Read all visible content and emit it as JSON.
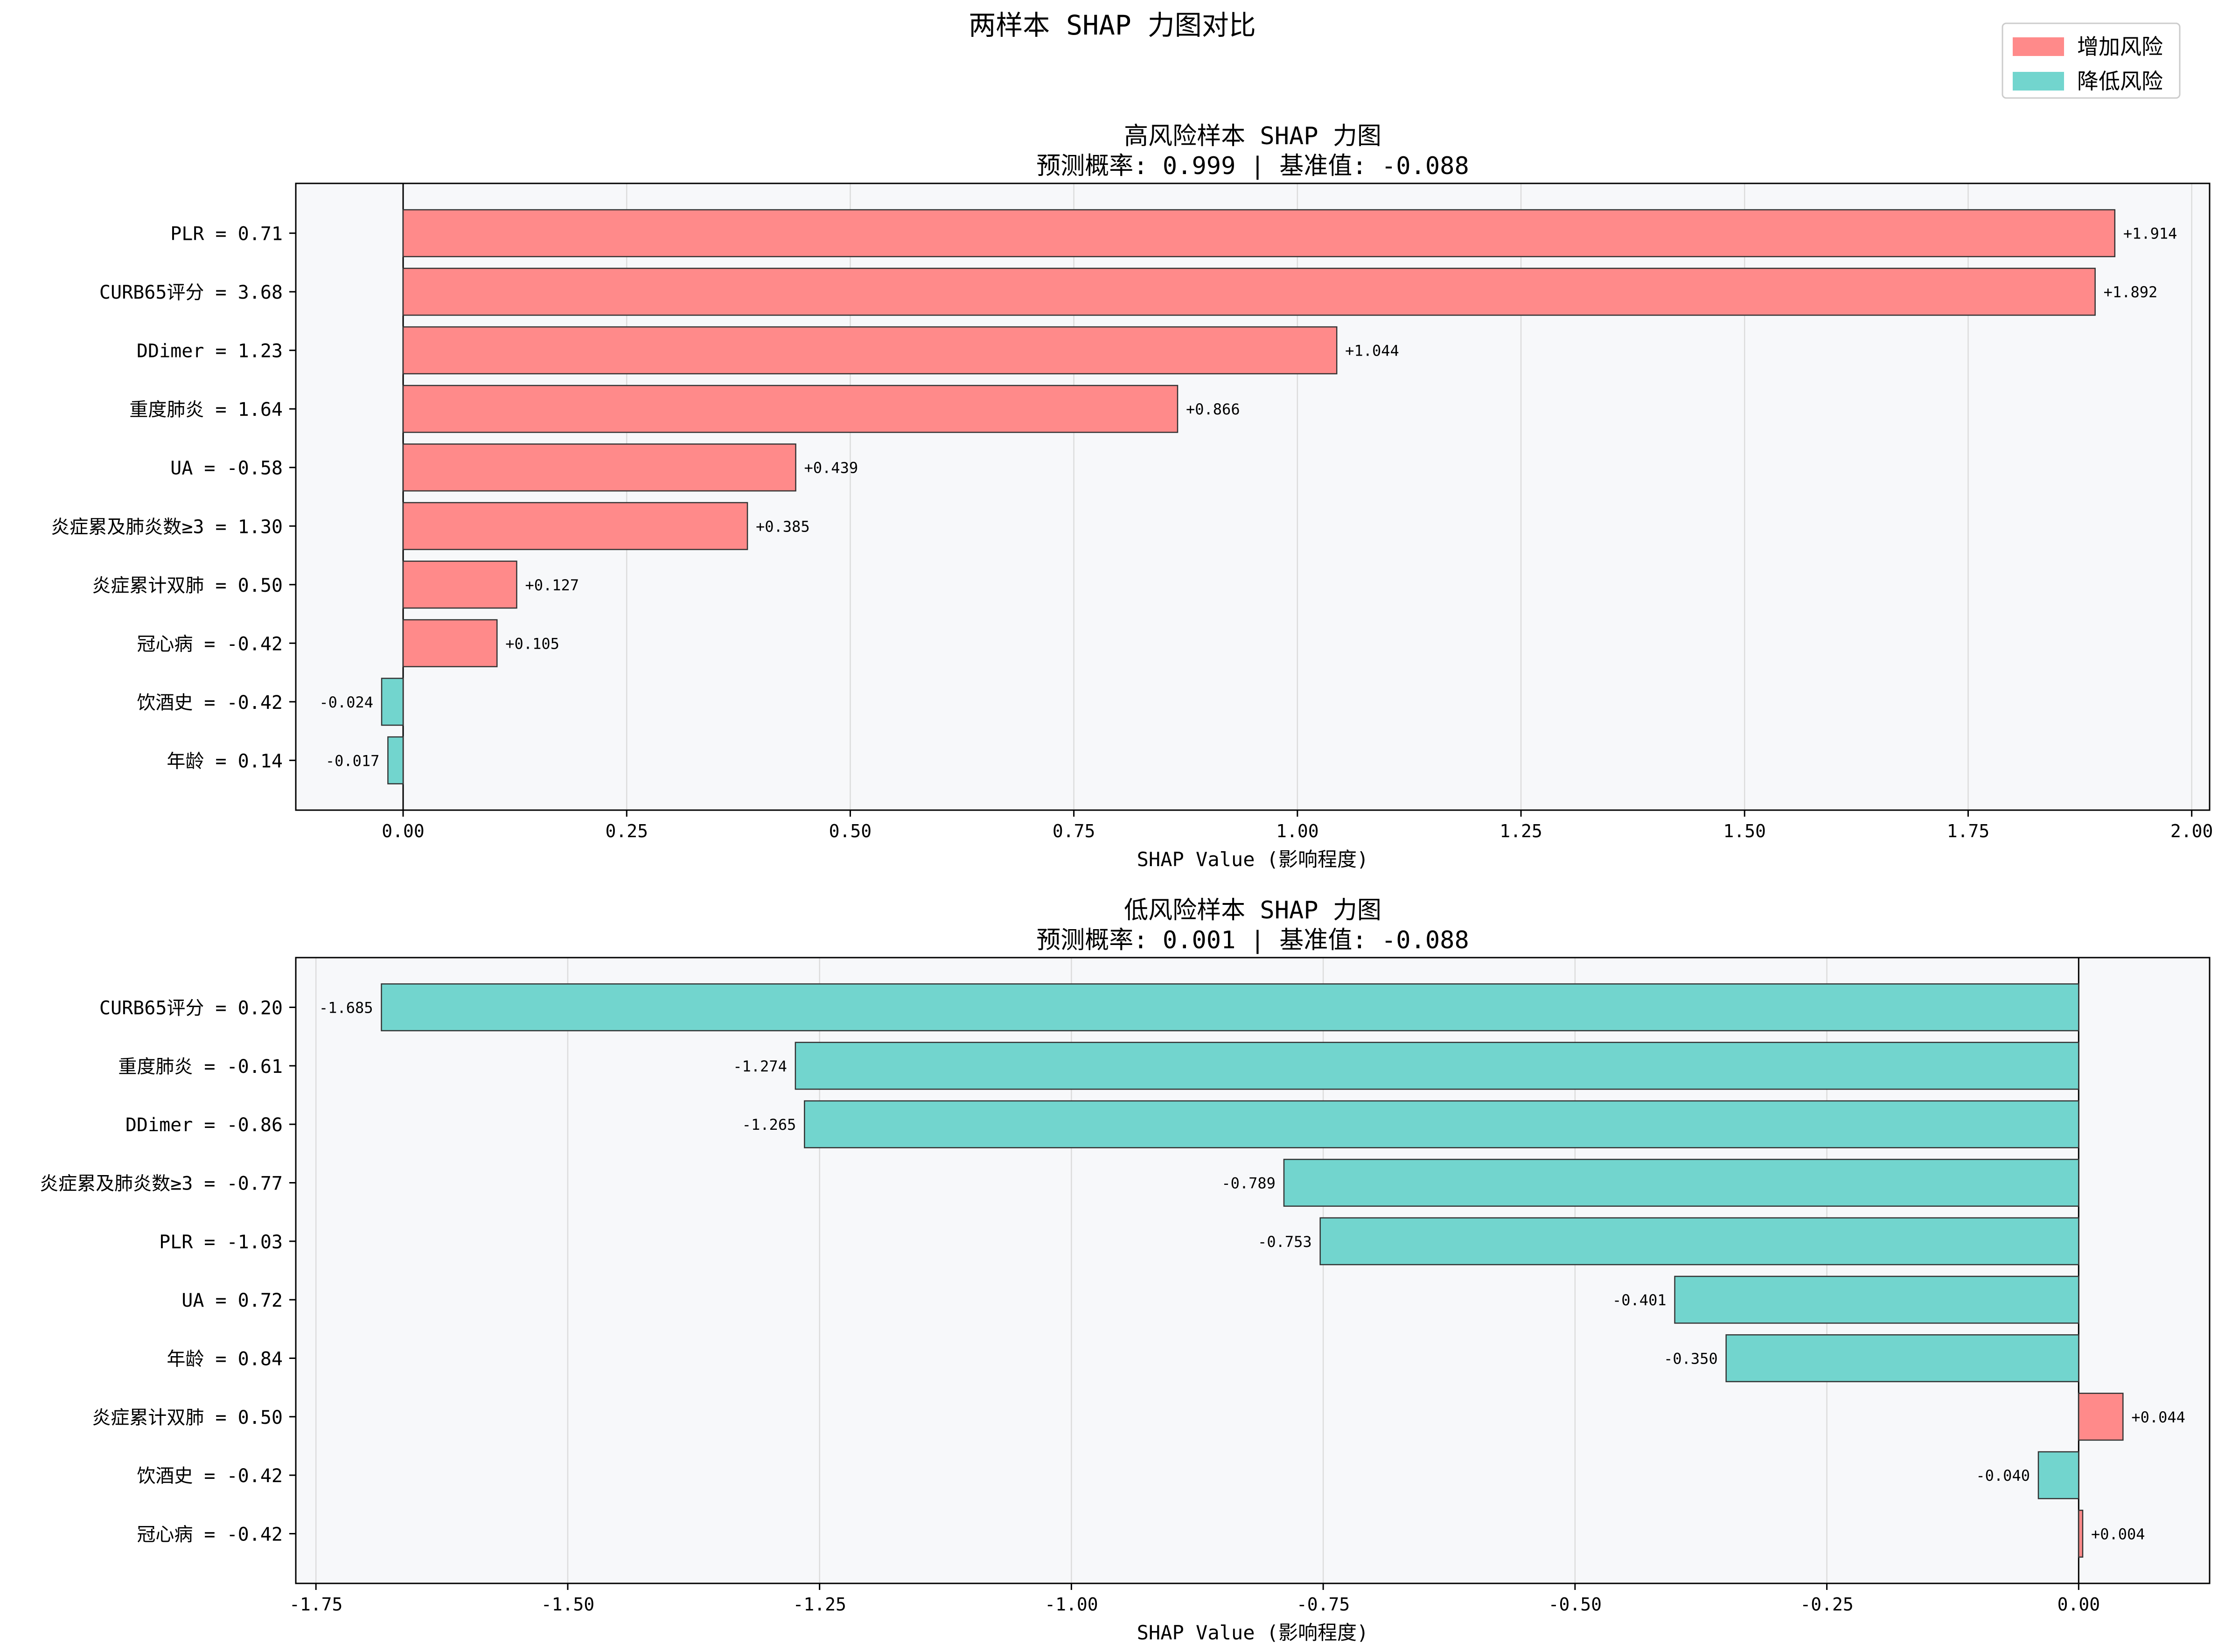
{
  "figure": {
    "title": "两样本 SHAP 力图对比",
    "legend": {
      "position": "top-right",
      "items": [
        {
          "label": "增加风险",
          "color": "#FF8A8A"
        },
        {
          "label": "降低风险",
          "color": "#72D5CE"
        }
      ]
    },
    "colors": {
      "positive": "#FF8A8A",
      "negative": "#72D5CE",
      "plot_bg": "#F7F8FA"
    }
  },
  "chart_data": [
    {
      "type": "bar",
      "orientation": "horizontal",
      "title": "高风险样本 SHAP 力图",
      "subtitle": "预测概率: 0.999 | 基准值: -0.088",
      "xlabel": "SHAP Value (影响程度)",
      "xlim": [
        -0.12,
        2.02
      ],
      "xticks": [
        0.0,
        0.25,
        0.5,
        0.75,
        1.0,
        1.25,
        1.5,
        1.75,
        2.0
      ],
      "xtick_labels": [
        "0.00",
        "0.25",
        "0.50",
        "0.75",
        "1.00",
        "1.25",
        "1.50",
        "1.75",
        "2.00"
      ],
      "grid": "vertical",
      "categories": [
        "PLR = 0.71",
        "CURB65评分 = 3.68",
        "DDimer = 1.23",
        "重度肺炎 = 1.64",
        "UA = -0.58",
        "炎症累及肺炎数≥3 = 1.30",
        "炎症累计双肺 = 0.50",
        "冠心病 = -0.42",
        "饮酒史 = -0.42",
        "年龄 = 0.14"
      ],
      "values": [
        1.914,
        1.892,
        1.044,
        0.866,
        0.439,
        0.385,
        0.127,
        0.105,
        -0.024,
        -0.017
      ],
      "value_labels": [
        "+1.914",
        "+1.892",
        "+1.044",
        "+0.866",
        "+0.439",
        "+0.385",
        "+0.127",
        "+0.105",
        "-0.024",
        "-0.017"
      ]
    },
    {
      "type": "bar",
      "orientation": "horizontal",
      "title": "低风险样本 SHAP 力图",
      "subtitle": "预测概率: 0.001 | 基准值: -0.088",
      "xlabel": "SHAP Value (影响程度)",
      "xlim": [
        -1.77,
        0.13
      ],
      "xticks": [
        -1.75,
        -1.5,
        -1.25,
        -1.0,
        -0.75,
        -0.5,
        -0.25,
        0.0
      ],
      "xtick_labels": [
        "-1.75",
        "-1.50",
        "-1.25",
        "-1.00",
        "-0.75",
        "-0.50",
        "-0.25",
        "0.00"
      ],
      "grid": "vertical",
      "categories": [
        "CURB65评分 = 0.20",
        "重度肺炎 = -0.61",
        "DDimer = -0.86",
        "炎症累及肺炎数≥3 = -0.77",
        "PLR = -1.03",
        "UA = 0.72",
        "年龄 = 0.84",
        "炎症累计双肺 = 0.50",
        "饮酒史 = -0.42",
        "冠心病 = -0.42"
      ],
      "values": [
        -1.685,
        -1.274,
        -1.265,
        -0.789,
        -0.753,
        -0.401,
        -0.35,
        0.044,
        -0.04,
        0.004
      ],
      "value_labels": [
        "-1.685",
        "-1.274",
        "-1.265",
        "-0.789",
        "-0.753",
        "-0.401",
        "-0.350",
        "+0.044",
        "-0.040",
        "+0.004"
      ]
    }
  ]
}
